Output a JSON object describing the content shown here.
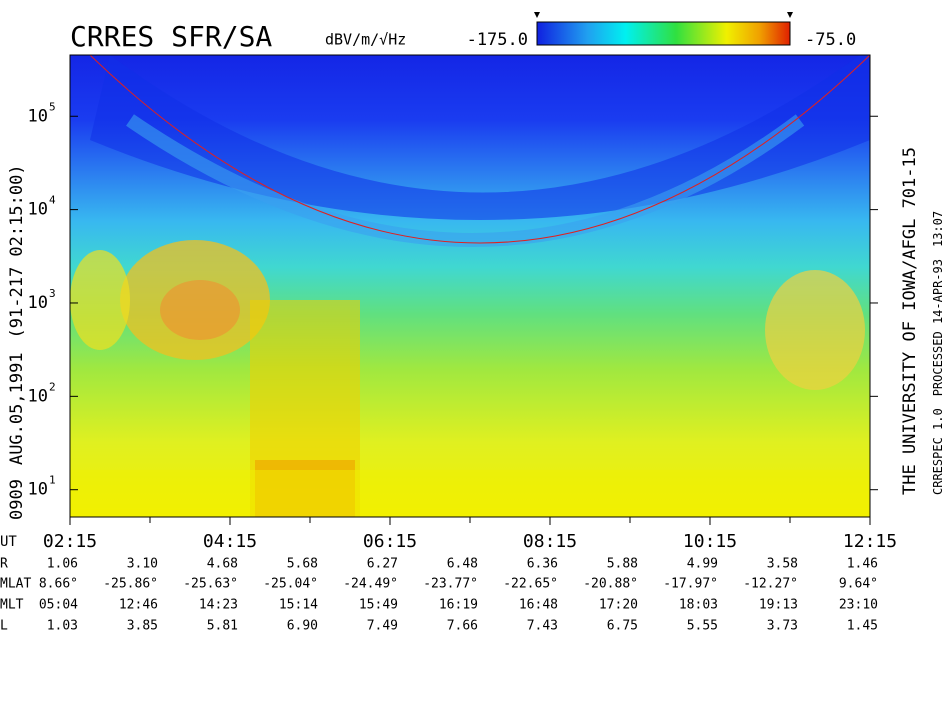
{
  "chart_data": {
    "type": "spectrogram",
    "title": "CRRES SFR/SA",
    "colorbar": {
      "label": "dBV/m/√Hz",
      "lim": [
        -175,
        -75
      ],
      "ticks": [
        {
          "value": -175,
          "label": "-175.0"
        },
        {
          "value": -75,
          "label": "-75.0"
        }
      ]
    },
    "log_y": true,
    "ylim": [
      5.1,
      453000
    ],
    "yticks": [
      {
        "value": 10,
        "label": "10",
        "exponent": "1"
      },
      {
        "value": 100,
        "label": "10",
        "exponent": "2"
      },
      {
        "value": 1000,
        "label": "10",
        "exponent": "3"
      },
      {
        "value": 10000,
        "label": "10",
        "exponent": "4"
      },
      {
        "value": 100000,
        "label": "10",
        "exponent": "5"
      }
    ],
    "x_label": "UT",
    "xticks": [
      "02:15",
      "04:15",
      "06:15",
      "08:15",
      "10:15",
      "12:15"
    ],
    "left_caption": [
      "0909",
      "AUG.05,1991",
      "(91-217 02:15:00)"
    ],
    "right_caption": "THE UNIVERSITY OF IOWA/AFGL 701-15",
    "right_note": [
      "CRRESPEC 1.0",
      "PROCESSED 14-APR-93",
      "13:07"
    ]
  },
  "ephemeris": {
    "rows": [
      {
        "label": "R",
        "values": [
          "1.06",
          "3.10",
          "4.68",
          "5.68",
          "6.27",
          "6.48",
          "6.36",
          "5.88",
          "4.99",
          "3.58",
          "1.46"
        ]
      },
      {
        "label": "MLAT",
        "values": [
          "8.66°",
          "-25.86°",
          "-25.63°",
          "-25.04°",
          "-24.49°",
          "-23.77°",
          "-22.65°",
          "-20.88°",
          "-17.97°",
          "-12.27°",
          "9.64°"
        ]
      },
      {
        "label": "MLT",
        "values": [
          "05:04",
          "12:46",
          "14:23",
          "15:14",
          "15:49",
          "16:19",
          "16:48",
          "17:20",
          "18:03",
          "19:13",
          "23:10"
        ]
      },
      {
        "label": "L",
        "values": [
          "1.03",
          "3.85",
          "5.81",
          "6.90",
          "7.49",
          "7.66",
          "7.43",
          "6.75",
          "5.55",
          "3.73",
          "1.45"
        ]
      }
    ]
  }
}
